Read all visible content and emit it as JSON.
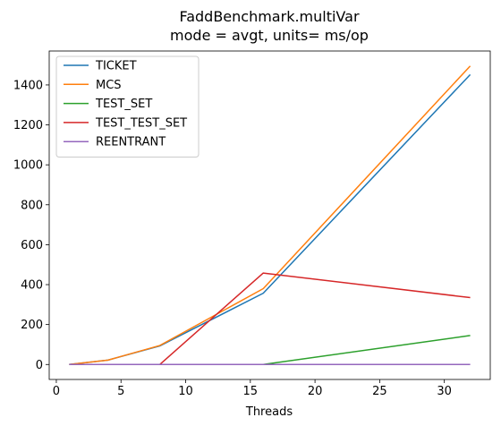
{
  "chart_data": {
    "type": "line",
    "title": "FaddBenchmark.multiVar",
    "subtitle": "mode = avgt, units= ms/op",
    "xlabel": "Threads",
    "ylabel": "",
    "xlim": [
      -0.55,
      33.55
    ],
    "ylim": [
      -75,
      1570
    ],
    "x_ticks": [
      0,
      5,
      10,
      15,
      20,
      25,
      30
    ],
    "y_ticks": [
      0,
      200,
      400,
      600,
      800,
      1000,
      1200,
      1400
    ],
    "x": [
      1,
      4,
      8,
      16,
      32
    ],
    "legend_position": "upper-left",
    "grid": false,
    "series": [
      {
        "name": "TICKET",
        "color": "#1f77b4",
        "values": [
          0,
          22,
          93,
          357,
          1452
        ]
      },
      {
        "name": "MCS",
        "color": "#ff7f0e",
        "values": [
          0,
          22,
          95,
          380,
          1495
        ]
      },
      {
        "name": "TEST_SET",
        "color": "#2ca02c",
        "values": [
          0,
          0,
          0,
          0,
          145
        ]
      },
      {
        "name": "TEST_TEST_SET",
        "color": "#d62728",
        "values": [
          0,
          0,
          0,
          458,
          335
        ]
      },
      {
        "name": "REENTRANT",
        "color": "#9467bd",
        "values": [
          0,
          0,
          0,
          0,
          0
        ]
      }
    ]
  }
}
